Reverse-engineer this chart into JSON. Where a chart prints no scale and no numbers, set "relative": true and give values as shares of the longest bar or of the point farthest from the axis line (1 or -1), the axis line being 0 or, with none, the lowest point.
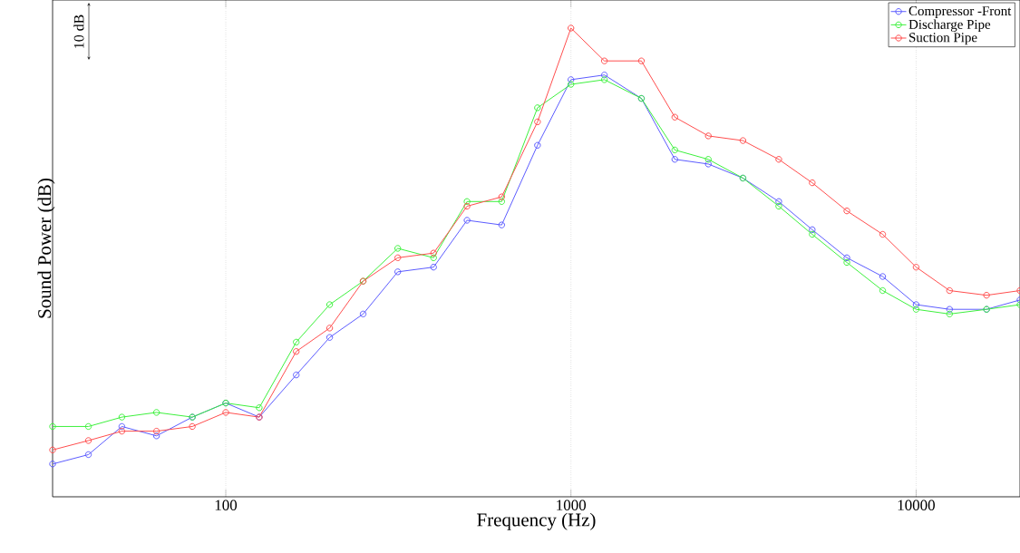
{
  "chart_data": {
    "type": "line",
    "relative": true,
    "log": "x",
    "grid": "x",
    "legend": "top right",
    "marker": "circle",
    "line_style": "solid",
    "xlabel": "Frequency (Hz)",
    "ylabel": "Sound Power (dB)",
    "annotations": [
      "10 dB"
    ],
    "xlim": [
      31.5,
      20000
    ],
    "xticks": [
      100,
      1000,
      10000
    ],
    "x": [
      31.5,
      40,
      50,
      63,
      80,
      100,
      125,
      160,
      200,
      250,
      315,
      400,
      500,
      630,
      800,
      1000,
      1250,
      1600,
      2000,
      2500,
      3150,
      4000,
      5000,
      6300,
      8000,
      10000,
      12500,
      16000,
      20000
    ],
    "series": [
      {
        "name": "Compressor -Front",
        "color": "#5b5bff",
        "values": [
          0.07,
          0.09,
          0.15,
          0.13,
          0.17,
          0.2,
          0.17,
          0.26,
          0.34,
          0.39,
          0.48,
          0.49,
          0.59,
          0.58,
          0.75,
          0.89,
          0.9,
          0.85,
          0.72,
          0.71,
          0.68,
          0.63,
          0.57,
          0.51,
          0.47,
          0.41,
          0.4,
          0.4,
          0.42
        ]
      },
      {
        "name": "Discharge Pipe",
        "color": "#3cf03c",
        "values": [
          0.15,
          0.15,
          0.17,
          0.18,
          0.17,
          0.2,
          0.19,
          0.33,
          0.41,
          0.46,
          0.53,
          0.51,
          0.63,
          0.63,
          0.83,
          0.88,
          0.89,
          0.85,
          0.74,
          0.72,
          0.68,
          0.62,
          0.56,
          0.5,
          0.44,
          0.4,
          0.39,
          0.4,
          0.41
        ]
      },
      {
        "name": "Suction Pipe",
        "color": "#ff4d4d",
        "values": [
          0.1,
          0.12,
          0.14,
          0.14,
          0.15,
          0.18,
          0.17,
          0.31,
          0.36,
          0.46,
          0.51,
          0.52,
          0.62,
          0.64,
          0.8,
          1.0,
          0.93,
          0.93,
          0.81,
          0.77,
          0.76,
          0.72,
          0.67,
          0.61,
          0.56,
          0.49,
          0.44,
          0.43,
          0.44
        ]
      }
    ]
  }
}
